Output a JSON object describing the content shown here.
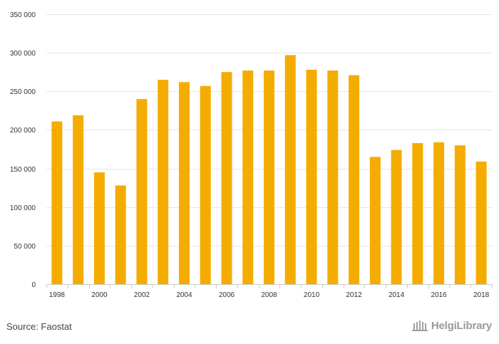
{
  "source_label": "Source: Faostat",
  "logo_text": "HelgiLibrary",
  "chart_data": {
    "type": "bar",
    "title": "",
    "xlabel": "",
    "ylabel": "",
    "ylim": [
      0,
      350000
    ],
    "y_ticks": [
      0,
      50000,
      100000,
      150000,
      200000,
      250000,
      300000,
      350000
    ],
    "y_tick_labels": [
      "0",
      "50 000",
      "100 000",
      "150 000",
      "200 000",
      "250 000",
      "300 000",
      "350 000"
    ],
    "grid": true,
    "bar_color": "#F5AC00",
    "categories": [
      "1998",
      "1999",
      "2000",
      "2001",
      "2002",
      "2003",
      "2004",
      "2005",
      "2006",
      "2007",
      "2008",
      "2009",
      "2010",
      "2011",
      "2012",
      "2013",
      "2014",
      "2015",
      "2016",
      "2017",
      "2018"
    ],
    "x_tick_labels": [
      "1998",
      "2000",
      "2002",
      "2004",
      "2006",
      "2008",
      "2010",
      "2012",
      "2014",
      "2016",
      "2018"
    ],
    "values": [
      211000,
      219000,
      145000,
      128000,
      240000,
      265000,
      262000,
      257000,
      275000,
      277000,
      277000,
      297000,
      278000,
      277000,
      271000,
      165000,
      174000,
      183000,
      184000,
      180000,
      159000
    ]
  }
}
